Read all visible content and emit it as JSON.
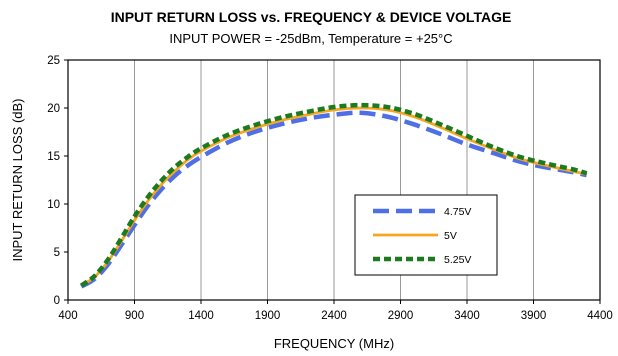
{
  "chart_data": {
    "type": "line",
    "title": "INPUT RETURN LOSS vs. FREQUENCY & DEVICE VOLTAGE",
    "subtitle": "INPUT POWER = -25dBm, Temperature = +25°C",
    "xlabel": "FREQUENCY (MHz)",
    "ylabel": "INPUT RETURN LOSS (dB)",
    "xlim": [
      400,
      4400
    ],
    "ylim": [
      0,
      25
    ],
    "x_ticks": [
      400,
      900,
      1400,
      1900,
      2400,
      2900,
      3400,
      3900,
      4400
    ],
    "y_ticks": [
      0,
      5,
      10,
      15,
      20,
      25
    ],
    "grid": "vertical",
    "legend_position": "center-right",
    "series": [
      {
        "name": "4.75V",
        "color": "#4F6FE6",
        "style": "long-dash",
        "x": [
          500,
          600,
          700,
          800,
          900,
          1000,
          1100,
          1200,
          1300,
          1400,
          1600,
          1800,
          2000,
          2200,
          2400,
          2600,
          2800,
          3000,
          3200,
          3400,
          3600,
          3800,
          4000,
          4200,
          4300
        ],
        "y": [
          1.4,
          2.2,
          3.7,
          5.7,
          7.8,
          9.8,
          11.5,
          12.9,
          14.0,
          14.9,
          16.4,
          17.5,
          18.3,
          18.9,
          19.3,
          19.5,
          19.1,
          18.3,
          17.3,
          16.2,
          15.3,
          14.4,
          13.8,
          13.3,
          13.0
        ]
      },
      {
        "name": "5V",
        "color": "#F5A623",
        "style": "solid",
        "x": [
          500,
          600,
          700,
          800,
          900,
          1000,
          1100,
          1200,
          1300,
          1400,
          1600,
          1800,
          2000,
          2200,
          2400,
          2600,
          2800,
          3000,
          3200,
          3400,
          3600,
          3800,
          4000,
          4200,
          4300
        ],
        "y": [
          1.5,
          2.4,
          4.0,
          6.1,
          8.3,
          10.3,
          12.0,
          13.4,
          14.6,
          15.5,
          16.9,
          17.9,
          18.7,
          19.3,
          19.8,
          20.0,
          19.8,
          19.1,
          18.0,
          16.8,
          15.7,
          14.7,
          14.0,
          13.4,
          13.1
        ]
      },
      {
        "name": "5.25V",
        "color": "#1E7A1E",
        "style": "short-dash",
        "x": [
          500,
          600,
          700,
          800,
          900,
          1000,
          1100,
          1200,
          1300,
          1400,
          1600,
          1800,
          2000,
          2200,
          2400,
          2600,
          2800,
          3000,
          3200,
          3400,
          3600,
          3800,
          4000,
          4200,
          4300
        ],
        "y": [
          1.5,
          2.5,
          4.2,
          6.4,
          8.7,
          10.7,
          12.4,
          13.8,
          14.9,
          15.8,
          17.2,
          18.2,
          19.0,
          19.6,
          20.1,
          20.3,
          20.1,
          19.4,
          18.3,
          17.1,
          15.9,
          14.9,
          14.2,
          13.6,
          13.2
        ]
      }
    ]
  }
}
